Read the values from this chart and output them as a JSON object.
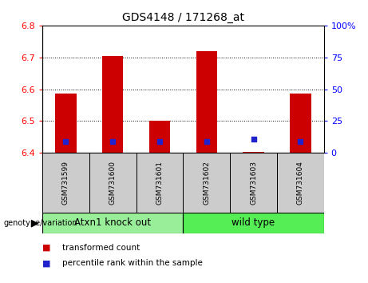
{
  "title": "GDS4148 / 171268_at",
  "samples": [
    "GSM731599",
    "GSM731600",
    "GSM731601",
    "GSM731602",
    "GSM731603",
    "GSM731604"
  ],
  "red_bar_tops": [
    6.585,
    6.705,
    6.5,
    6.72,
    6.402,
    6.585
  ],
  "red_bar_bottom": 6.398,
  "blue_dot_y": [
    6.435,
    6.435,
    6.435,
    6.435,
    6.443,
    6.435
  ],
  "blue_dot_size": 18,
  "ylim_left": [
    6.4,
    6.8
  ],
  "ylim_right": [
    0,
    100
  ],
  "yticks_left": [
    6.4,
    6.5,
    6.6,
    6.7,
    6.8
  ],
  "yticks_right": [
    0,
    25,
    50,
    75,
    100
  ],
  "right_tick_labels": [
    "0",
    "25",
    "50",
    "75",
    "100%"
  ],
  "group1_label": "Atxn1 knock out",
  "group2_label": "wild type",
  "group1_indices": [
    0,
    1,
    2
  ],
  "group2_indices": [
    3,
    4,
    5
  ],
  "genotype_label": "genotype/variation",
  "legend_red": "transformed count",
  "legend_blue": "percentile rank within the sample",
  "red_color": "#CC0000",
  "blue_color": "#2222CC",
  "group1_color": "#99EE99",
  "group2_color": "#55EE55",
  "xtick_bg_color": "#CCCCCC",
  "bar_width": 0.45,
  "grid_color": "black",
  "grid_linestyle": "dotted"
}
